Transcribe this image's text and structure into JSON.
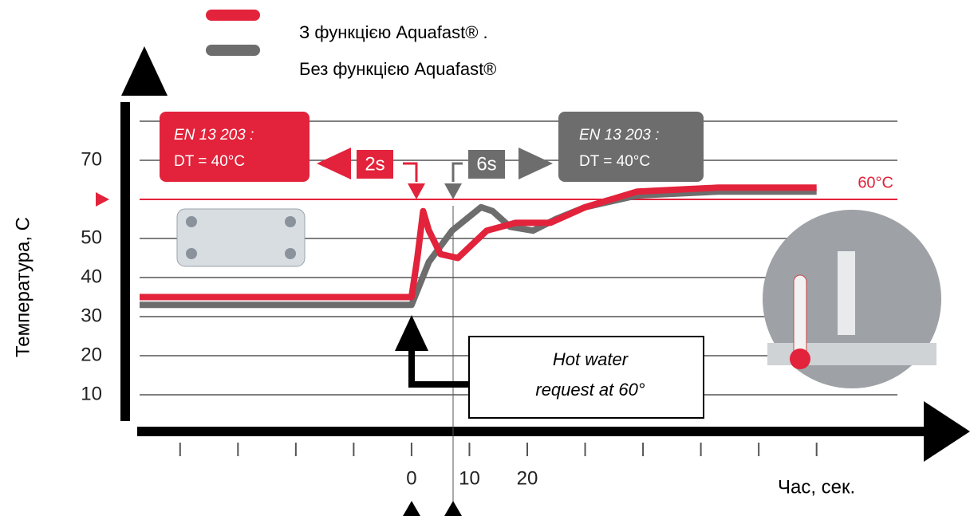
{
  "chart_data": {
    "type": "line",
    "x_label": "Час, сек.",
    "y_label": "Температура, С",
    "xlim": [
      -47,
      87
    ],
    "ylim": [
      0,
      90
    ],
    "xticks": [
      0,
      10,
      20
    ],
    "xminor_ticks": [
      -40,
      -30,
      -20,
      -10,
      30,
      40,
      50,
      60,
      70
    ],
    "yticks": [
      10,
      20,
      30,
      40,
      50,
      70
    ],
    "yminor_ticks": [
      80
    ],
    "grid": true,
    "reference_line": {
      "value": 60,
      "label": "60°C",
      "color": "#e2233b"
    },
    "series": [
      {
        "name": "З функцією Aquafast® .",
        "color": "#e2233b",
        "x": [
          -47,
          0,
          1,
          2,
          3,
          5,
          8,
          13,
          18,
          24,
          30,
          39,
          53,
          70
        ],
        "values": [
          35,
          35,
          45,
          57,
          52,
          46,
          45,
          52,
          54,
          54,
          58,
          62,
          63,
          63
        ]
      },
      {
        "name": "Без функцією Aquafast®",
        "color": "#6d6d6d",
        "x": [
          -47,
          0,
          3,
          7,
          12,
          14,
          17,
          21,
          25,
          30,
          39,
          53,
          70
        ],
        "values": [
          33,
          33,
          44,
          52,
          58,
          57,
          53,
          52,
          55,
          58,
          61,
          62,
          62
        ]
      }
    ],
    "annotations": {
      "red_box": [
        "EN 13 203 :",
        "DT = 40°C"
      ],
      "red_time": "2s",
      "gray_box": [
        "EN 13 203 :",
        "DT = 40°C"
      ],
      "gray_time": "6s",
      "request": [
        "Hot water",
        "request at 60°"
      ]
    }
  }
}
